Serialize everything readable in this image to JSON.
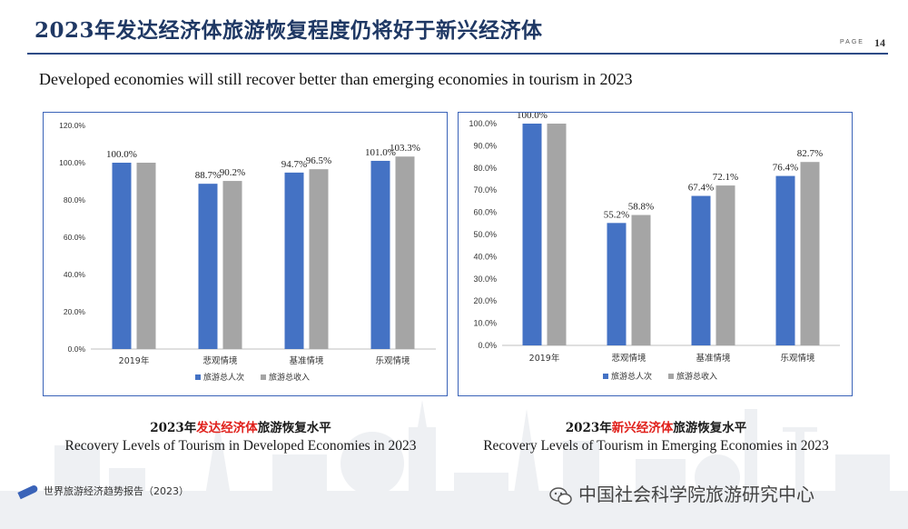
{
  "header": {
    "title": "2023年发达经济体旅游恢复程度仍将好于新兴经济体",
    "page_label": "PAGE",
    "page_number": "14"
  },
  "subtitle": "Developed economies will still recover better than emerging economies in tourism in 2023",
  "legend": {
    "series1": "旅游总人次",
    "series2": "旅游总收入"
  },
  "captions": {
    "left_cn_prefix": "2023年",
    "left_cn_red": "发达经济体",
    "left_cn_suffix": "旅游恢复水平",
    "left_en": "Recovery Levels of Tourism in Developed Economies in 2023",
    "right_cn_prefix": "2023年",
    "right_cn_red": "新兴经济体",
    "right_cn_suffix": "旅游恢复水平",
    "right_en": "Recovery Levels of Tourism in Emerging Economies in 2023"
  },
  "footer": {
    "left": "世界旅游经济趋势报告（2023）",
    "right": "中国社会科学院旅游研究中心"
  },
  "colors": {
    "series1": "#4472c4",
    "series2": "#a5a5a5",
    "red": "#e0201b",
    "title": "#1f3864"
  },
  "chart_data": [
    {
      "type": "bar",
      "categories": [
        "2019年",
        "悲观情境",
        "基准情境",
        "乐观情境"
      ],
      "series": [
        {
          "name": "旅游总人次",
          "values": [
            100.0,
            88.7,
            94.7,
            101.0
          ]
        },
        {
          "name": "旅游总收入",
          "values": [
            100.0,
            90.2,
            96.5,
            103.3
          ]
        }
      ],
      "ylim": [
        0,
        120
      ],
      "yticks": [
        "0.0%",
        "20.0%",
        "40.0%",
        "60.0%",
        "80.0%",
        "100.0%",
        "120.0%"
      ],
      "ytick_values": [
        0,
        20,
        40,
        60,
        80,
        100,
        120
      ],
      "data_labels": [
        [
          "100.0%",
          "88.7%",
          "94.7%",
          "101.0%"
        ],
        [
          "",
          "90.2%",
          "96.5%",
          "103.3%"
        ]
      ],
      "legend_position": "bottom",
      "grid": false
    },
    {
      "type": "bar",
      "categories": [
        "2019年",
        "悲观情境",
        "基准情境",
        "乐观情境"
      ],
      "series": [
        {
          "name": "旅游总人次",
          "values": [
            100.0,
            55.2,
            67.4,
            76.4
          ]
        },
        {
          "name": "旅游总收入",
          "values": [
            100.0,
            58.8,
            72.1,
            82.7
          ]
        }
      ],
      "ylim": [
        0,
        100
      ],
      "yticks": [
        "0.0%",
        "10.0%",
        "20.0%",
        "30.0%",
        "40.0%",
        "50.0%",
        "60.0%",
        "70.0%",
        "80.0%",
        "90.0%",
        "100.0%"
      ],
      "ytick_values": [
        0,
        10,
        20,
        30,
        40,
        50,
        60,
        70,
        80,
        90,
        100
      ],
      "data_labels": [
        [
          "100.0%",
          "55.2%",
          "67.4%",
          "76.4%"
        ],
        [
          "",
          "58.8%",
          "72.1%",
          "82.7%"
        ]
      ],
      "legend_position": "bottom",
      "grid": false
    }
  ]
}
